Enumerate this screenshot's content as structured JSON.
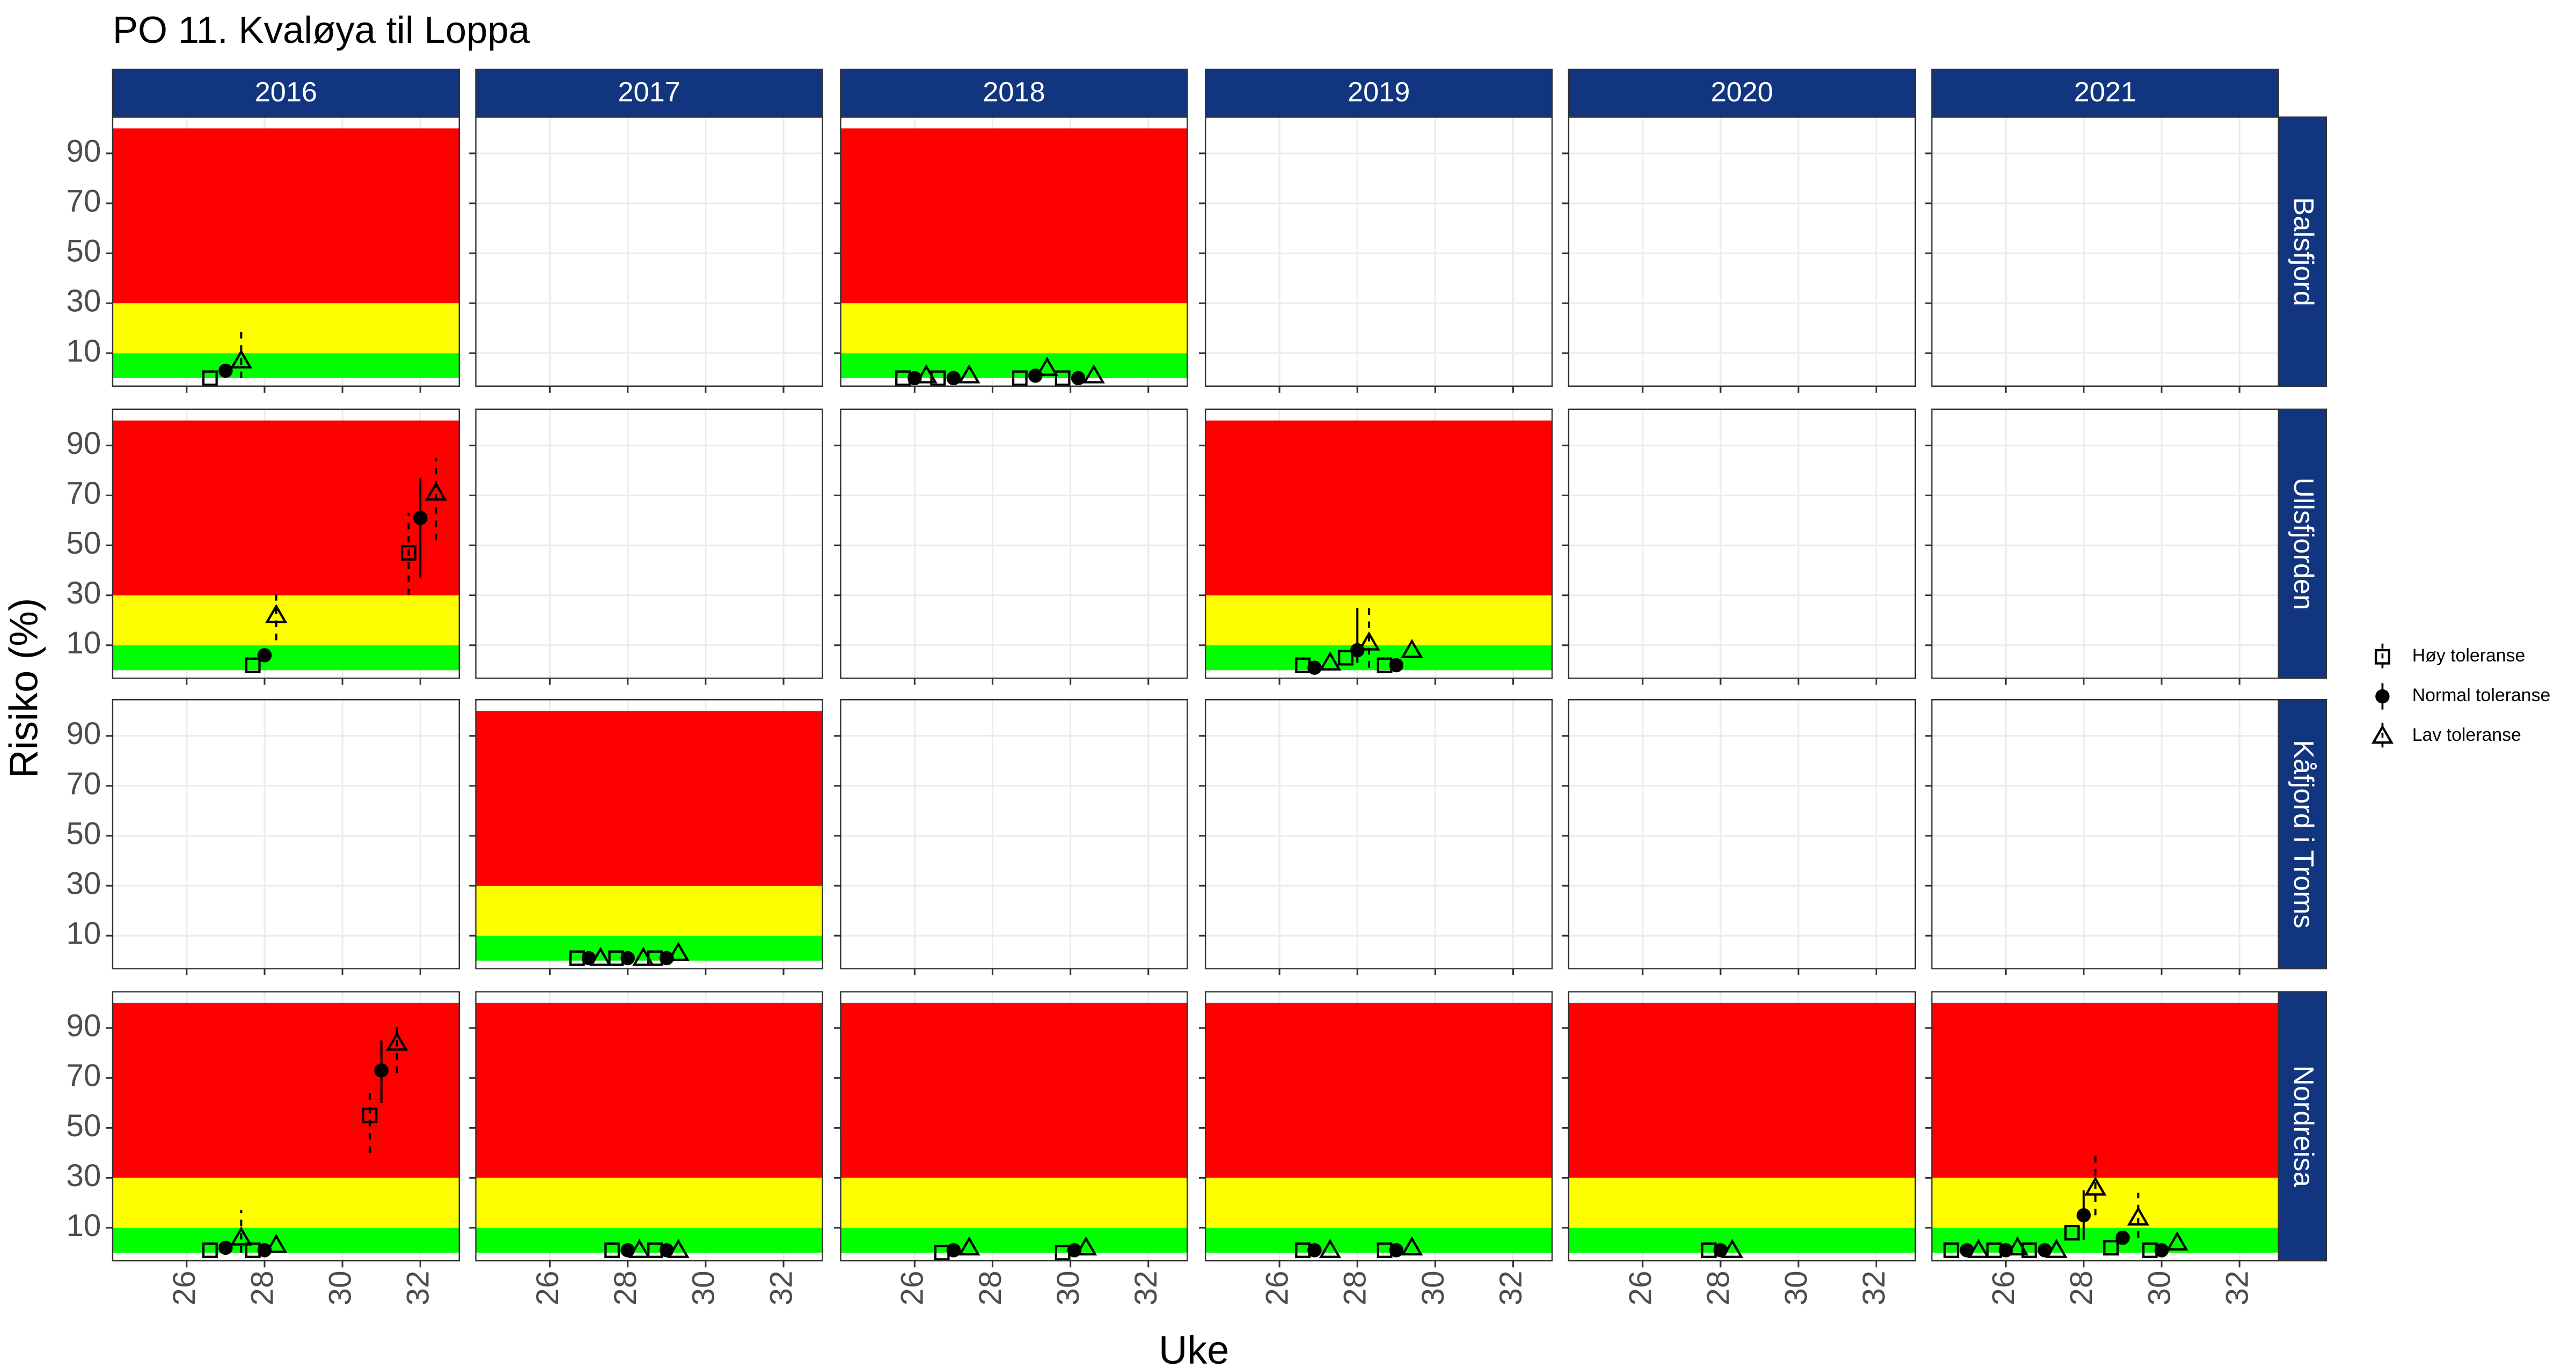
{
  "chart_data": {
    "type": "facet-scatter",
    "title": "PO 11. Kvaløya til Loppa",
    "xlabel": "Uke",
    "ylabel": "Risiko (%)",
    "columns": [
      "2016",
      "2017",
      "2018",
      "2019",
      "2020",
      "2021"
    ],
    "xlim": [
      24.1,
      33.0
    ],
    "xticks": [
      26,
      28,
      30,
      32
    ],
    "ylim": [
      -3.2,
      104.5
    ],
    "yticks": [
      10,
      30,
      50,
      70,
      90
    ],
    "grid": true,
    "bands": [
      {
        "from": 0,
        "to": 10,
        "color": "#00ff00"
      },
      {
        "from": 10,
        "to": 30,
        "color": "#ffff00"
      },
      {
        "from": 30,
        "to": 100,
        "color": "#ff0000"
      }
    ],
    "series": [
      {
        "name": "Høy toleranse",
        "marker": "square",
        "linetype": "dashed"
      },
      {
        "name": "Normal toleranse",
        "marker": "circle",
        "linetype": "solid"
      },
      {
        "name": "Lav toleranse",
        "marker": "triangle",
        "linetype": "dashed"
      }
    ],
    "legend": "right",
    "rows": [
      {
        "name": "Balsfjord",
        "panels": [
          {
            "series": [
              {
                "x": [
                  26.6
                ],
                "values": [
                  0
                ]
              },
              {
                "x": [
                  27.0
                ],
                "values": [
                  3
                ]
              },
              {
                "x": [
                  27.4
                ],
                "values": [
                  7
                ],
                "lo": [
                  0
                ],
                "hi": [
                  21
                ]
              }
            ]
          },
          {
            "series": []
          },
          {
            "series": [
              {
                "x": [
                  25.7,
                  26.6,
                  28.7,
                  29.8
                ],
                "values": [
                  0,
                  0,
                  0,
                  0
                ]
              },
              {
                "x": [
                  26.0,
                  27.0,
                  29.1,
                  30.2
                ],
                "values": [
                  0,
                  0,
                  1,
                  0
                ]
              },
              {
                "x": [
                  26.3,
                  27.4,
                  29.4,
                  30.6
                ],
                "values": [
                  1,
                  1,
                  4,
                  1
                ]
              }
            ]
          },
          {
            "series": []
          },
          {
            "series": []
          },
          {
            "series": []
          }
        ]
      },
      {
        "name": "Ullsfjorden",
        "panels": [
          {
            "series": [
              {
                "x": [
                  27.7,
                  31.7
                ],
                "values": [
                  2,
                  47
                ],
                "lo": [
                  null,
                  30
                ],
                "hi": [
                  null,
                  63
                ]
              },
              {
                "x": [
                  28.0,
                  32.0
                ],
                "values": [
                  6,
                  61
                ],
                "lo": [
                  null,
                  37
                ],
                "hi": [
                  null,
                  77
                ]
              },
              {
                "x": [
                  28.3,
                  32.4
                ],
                "values": [
                  22,
                  71
                ],
                "lo": [
                  12,
                  52
                ],
                "hi": [
                  32,
                  85
                ]
              }
            ]
          },
          {
            "series": []
          },
          {
            "series": []
          },
          {
            "series": [
              {
                "x": [
                  26.6,
                  27.7,
                  28.7
                ],
                "values": [
                  2,
                  5,
                  2
                ]
              },
              {
                "x": [
                  26.9,
                  28.0,
                  29.0
                ],
                "values": [
                  1,
                  8,
                  2
                ],
                "lo": [
                  null,
                  3,
                  null
                ],
                "hi": [
                  null,
                  25,
                  null
                ]
              },
              {
                "x": [
                  27.3,
                  28.3,
                  29.4
                ],
                "values": [
                  3,
                  11,
                  8
                ],
                "lo": [
                  null,
                  1,
                  null
                ],
                "hi": [
                  null,
                  25,
                  null
                ]
              }
            ]
          },
          {
            "series": []
          },
          {
            "series": []
          }
        ]
      },
      {
        "name": "Kåfjord i Troms",
        "panels": [
          {
            "series": []
          },
          {
            "series": [
              {
                "x": [
                  26.7,
                  27.7,
                  28.7
                ],
                "values": [
                  1,
                  1,
                  1
                ]
              },
              {
                "x": [
                  27.0,
                  28.0,
                  29.0
                ],
                "values": [
                  1,
                  1,
                  1
                ]
              },
              {
                "x": [
                  27.3,
                  28.4,
                  29.3
                ],
                "values": [
                  1,
                  1,
                  3
                ]
              }
            ]
          },
          {
            "series": []
          },
          {
            "series": []
          },
          {
            "series": []
          },
          {
            "series": []
          }
        ]
      },
      {
        "name": "Nordreisa",
        "panels": [
          {
            "series": [
              {
                "x": [
                  26.6,
                  27.7,
                  30.7
                ],
                "values": [
                  1,
                  1,
                  55
                ],
                "lo": [
                  null,
                  null,
                  40
                ],
                "hi": [
                  null,
                  null,
                  65
                ]
              },
              {
                "x": [
                  27.0,
                  28.0,
                  31.0
                ],
                "values": [
                  2,
                  1,
                  73
                ],
                "lo": [
                  null,
                  null,
                  60
                ],
                "hi": [
                  null,
                  null,
                  85
                ]
              },
              {
                "x": [
                  27.4,
                  28.3,
                  31.4
                ],
                "values": [
                  6,
                  3,
                  84
                ],
                "lo": [
                  0,
                  null,
                  72
                ],
                "hi": [
                  17,
                  null,
                  93
                ]
              }
            ]
          },
          {
            "series": [
              {
                "x": [
                  27.6,
                  28.7
                ],
                "values": [
                  1,
                  1
                ]
              },
              {
                "x": [
                  28.0,
                  29.0
                ],
                "values": [
                  1,
                  1
                ]
              },
              {
                "x": [
                  28.3,
                  29.3
                ],
                "values": [
                  1,
                  1
                ]
              }
            ]
          },
          {
            "series": [
              {
                "x": [
                  26.7,
                  29.8
                ],
                "values": [
                  0,
                  0
                ]
              },
              {
                "x": [
                  27.0,
                  30.1
                ],
                "values": [
                  1,
                  1
                ]
              },
              {
                "x": [
                  27.4,
                  30.4
                ],
                "values": [
                  2,
                  2
                ]
              }
            ]
          },
          {
            "series": [
              {
                "x": [
                  26.6,
                  28.7
                ],
                "values": [
                  1,
                  1
                ]
              },
              {
                "x": [
                  26.9,
                  29.0
                ],
                "values": [
                  1,
                  1
                ]
              },
              {
                "x": [
                  27.3,
                  29.4
                ],
                "values": [
                  1,
                  2
                ]
              }
            ]
          },
          {
            "series": [
              {
                "x": [
                  27.7
                ],
                "values": [
                  1
                ]
              },
              {
                "x": [
                  28.0
                ],
                "values": [
                  1
                ]
              },
              {
                "x": [
                  28.3
                ],
                "values": [
                  1
                ]
              }
            ]
          },
          {
            "series": [
              {
                "x": [
                  24.6,
                  25.7,
                  26.6,
                  27.7,
                  28.7,
                  29.7
                ],
                "values": [
                  1,
                  1,
                  1,
                  8,
                  2,
                  1
                ]
              },
              {
                "x": [
                  25.0,
                  26.0,
                  27.0,
                  28.0,
                  29.0,
                  30.0
                ],
                "values": [
                  1,
                  1,
                  1,
                  15,
                  6,
                  1
                ],
                "lo": [
                  null,
                  null,
                  null,
                  5,
                  null,
                  null
                ],
                "hi": [
                  null,
                  null,
                  null,
                  25,
                  null,
                  null
                ]
              },
              {
                "x": [
                  25.3,
                  26.3,
                  27.3,
                  28.3,
                  29.4,
                  30.4
                ],
                "values": [
                  1,
                  2,
                  1,
                  26,
                  14,
                  4
                ],
                "lo": [
                  null,
                  null,
                  null,
                  15,
                  6,
                  null
                ],
                "hi": [
                  null,
                  null,
                  null,
                  40,
                  24,
                  null
                ]
              }
            ]
          }
        ]
      }
    ]
  }
}
